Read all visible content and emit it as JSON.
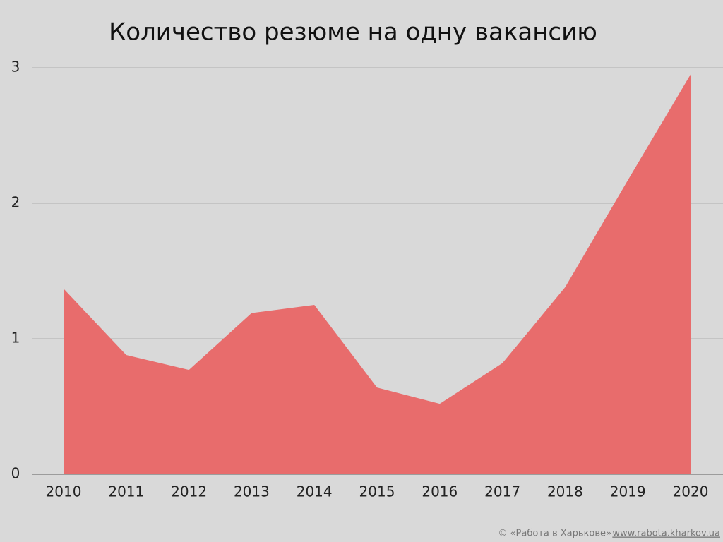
{
  "chart_data": {
    "type": "area",
    "title": "Количество резюме на одну вакансию",
    "categories": [
      "2010",
      "2011",
      "2012",
      "2013",
      "2014",
      "2015",
      "2016",
      "2017",
      "2018",
      "2019",
      "2020"
    ],
    "values": [
      1.37,
      0.88,
      0.77,
      1.19,
      1.25,
      0.64,
      0.52,
      0.82,
      1.38,
      2.17,
      2.95
    ],
    "color": "#e86c6c",
    "ylim": [
      0,
      3
    ],
    "yticks": [
      0,
      1,
      2,
      3
    ],
    "grid": true
  },
  "footer": {
    "text": "© «Работа в Харькове»",
    "link": "www.rabota.kharkov.ua"
  }
}
